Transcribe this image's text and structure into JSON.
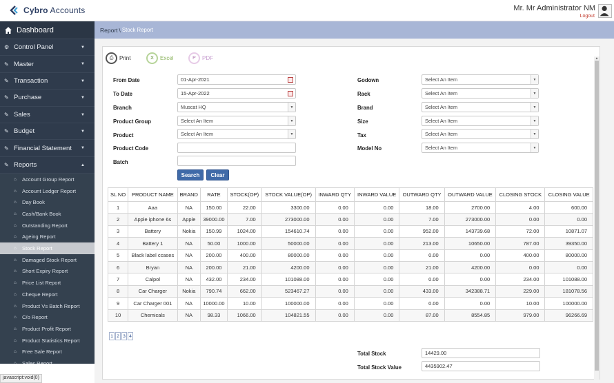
{
  "app": {
    "logo_text_bold": "Cybro",
    "logo_text_rest": "Accounts",
    "user_name": "Mr. Mr Administrator NM",
    "logout_label": "Logout",
    "status_url": "javascript:void(0)"
  },
  "sidebar": {
    "dashboard_label": "Dashboard",
    "items": [
      {
        "label": "Control Panel"
      },
      {
        "label": "Master"
      },
      {
        "label": "Transaction"
      },
      {
        "label": "Purchase"
      },
      {
        "label": "Sales"
      },
      {
        "label": "Budget"
      },
      {
        "label": "Financial Statement"
      },
      {
        "label": "Reports"
      }
    ],
    "report_links": [
      "Account Group Report",
      "Account Ledger Report",
      "Day Book",
      "Cash/Bank Book",
      "Outstanding Report",
      "Ageing Report",
      "Stock Report",
      "Damaged Stock Report",
      "Short Expiry Report",
      "Price List Report",
      "Cheque Report",
      "Product Vs Batch Report",
      "C/o Report",
      "Product Profit Report",
      "Product Statistics Report",
      "Free Sale Report",
      "Sales Report"
    ],
    "active_link": "Stock Report"
  },
  "breadcrumb": {
    "parent": "Report",
    "separator": "\\",
    "current": "Stock Report"
  },
  "export": {
    "print": "Print",
    "excel": "Excel",
    "pdf": "PDF"
  },
  "filters": {
    "from_date_label": "From Date",
    "from_date_value": "01-Apr-2021",
    "to_date_label": "To Date",
    "to_date_value": "15-Apr-2022",
    "branch_label": "Branch",
    "branch_value": "Muscat HQ",
    "product_group_label": "Product Group",
    "product_group_value": "Select An Item",
    "product_label": "Product",
    "product_value": "Select An Item",
    "product_code_label": "Product Code",
    "product_code_value": "",
    "batch_label": "Batch",
    "batch_value": "",
    "godown_label": "Godown",
    "godown_value": "Select An Item",
    "rack_label": "Rack",
    "rack_value": "Select An Item",
    "brand_label": "Brand",
    "brand_value": "Select An Item",
    "size_label": "Size",
    "size_value": "Select An Item",
    "tax_label": "Tax",
    "tax_value": "Select An Item",
    "model_no_label": "Model No",
    "model_no_value": "Select An Item",
    "search_button": "Search",
    "clear_button": "Clear"
  },
  "table": {
    "headers": [
      "SL NO",
      "PRODUCT NAME",
      "BRAND",
      "RATE",
      "STOCK(OP)",
      "STOCK VALUE(OP)",
      "INWARD QTY",
      "INWARD VALUE",
      "OUTWARD QTY",
      "OUTWARD VALUE",
      "CLOSING STOCK",
      "CLOSING VALUE"
    ],
    "rows": [
      [
        "1",
        "Aaa",
        "NA",
        "150.00",
        "22.00",
        "3300.00",
        "0.00",
        "0.00",
        "18.00",
        "2700.00",
        "4.00",
        "600.00"
      ],
      [
        "2",
        "Apple iphone 6s",
        "Apple",
        "39000.00",
        "7.00",
        "273000.00",
        "0.00",
        "0.00",
        "7.00",
        "273000.00",
        "0.00",
        "0.00"
      ],
      [
        "3",
        "Battery",
        "Nokia",
        "150.99",
        "1024.00",
        "154610.74",
        "0.00",
        "0.00",
        "952.00",
        "143739.68",
        "72.00",
        "10871.07"
      ],
      [
        "4",
        "Battery 1",
        "NA",
        "50.00",
        "1000.00",
        "50000.00",
        "0.00",
        "0.00",
        "213.00",
        "10650.00",
        "787.00",
        "39350.00"
      ],
      [
        "5",
        "Black label ccases",
        "NA",
        "200.00",
        "400.00",
        "80000.00",
        "0.00",
        "0.00",
        "0.00",
        "0.00",
        "400.00",
        "80000.00"
      ],
      [
        "6",
        "Bryan",
        "NA",
        "200.00",
        "21.00",
        "4200.00",
        "0.00",
        "0.00",
        "21.00",
        "4200.00",
        "0.00",
        "0.00"
      ],
      [
        "7",
        "Calpol",
        "NA",
        "432.00",
        "234.00",
        "101088.00",
        "0.00",
        "0.00",
        "0.00",
        "0.00",
        "234.00",
        "101088.00"
      ],
      [
        "8",
        "Car Charger",
        "Nokia",
        "790.74",
        "662.00",
        "523467.27",
        "0.00",
        "0.00",
        "433.00",
        "342388.71",
        "229.00",
        "181078.56"
      ],
      [
        "9",
        "Car Charger 001",
        "NA",
        "10000.00",
        "10.00",
        "100000.00",
        "0.00",
        "0.00",
        "0.00",
        "0.00",
        "10.00",
        "100000.00"
      ],
      [
        "10",
        "Chemicals",
        "NA",
        "98.33",
        "1066.00",
        "104821.55",
        "0.00",
        "0.00",
        "87.00",
        "8554.85",
        "979.00",
        "96266.69"
      ]
    ]
  },
  "pagination": [
    "1",
    "2",
    "3",
    "4"
  ],
  "totals": {
    "total_stock_label": "Total Stock",
    "total_stock_value": "14429.00",
    "total_stock_value_label": "Total Stock Value",
    "total_stock_value_value": "4435902.47"
  },
  "colors": {
    "sidebar_bg": "#2f3b4c",
    "breadcrumb_bg": "#a8b6d6",
    "button_bg": "#3f6aa8",
    "logout": "#c0392b"
  }
}
